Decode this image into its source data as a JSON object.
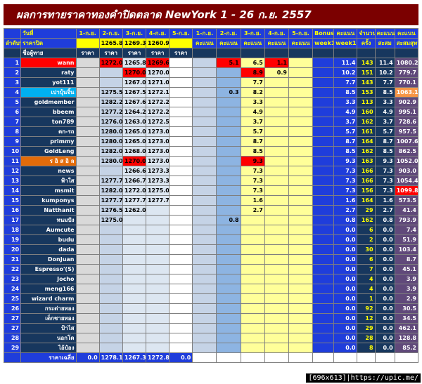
{
  "title": "ผลการทายราคาทองคำปิดตลาด NewYork 1 - 26 ก.ย. 2557",
  "table": {
    "header": [
      [
        null,
        "วันที่",
        "1-ก.ย.",
        "2-ก.ย.",
        "3-ก.ย.",
        "4-ก.ย.",
        "5-ก.ย.",
        "1-ก.ย.",
        "2-ก.ย.",
        "3-ก.ย.",
        "4-ก.ย.",
        "5-ก.ย.",
        "Bonus",
        "คะแนน",
        "จำนวน",
        "คะแนน",
        "คะแนน"
      ],
      [
        "ลำดับที่",
        "ราคาปิด",
        null,
        "1265.8",
        "1269.3",
        "1260.9",
        null,
        "คะแนน",
        "คะแนน",
        "คะแนน",
        "คะแนน",
        "คะแนน",
        "week1",
        "week1",
        "ครั้ง",
        "สะสม",
        "สะสมสุทธิ"
      ],
      [
        null,
        "ชื่อผู้ทาย",
        "ราคา",
        "ราคา",
        "ราคา",
        "ราคา",
        "ราคา",
        null,
        null,
        null,
        null,
        null,
        null,
        null,
        null,
        null,
        null
      ]
    ],
    "rows": [
      [
        "1",
        {
          "text": "wann",
          "bg": "#ff0000"
        },
        null,
        {
          "text": "1272.0",
          "bg": "#ff0000"
        },
        "1265.8",
        {
          "text": "1269.6",
          "bg": "#ff0000"
        },
        null,
        null,
        {
          "text": "5.1",
          "bg": "#ff0000"
        },
        "6.5",
        {
          "text": "1.1",
          "bg": "#ff0000"
        },
        null,
        null,
        "11.4",
        "143",
        "11.4",
        "1080.2"
      ],
      [
        "2",
        "raty",
        null,
        null,
        {
          "text": "1270.0",
          "bg": "#ff0000"
        },
        "1270.0",
        null,
        null,
        null,
        {
          "text": "8.9",
          "bg": "#ff0000"
        },
        "0.9",
        null,
        null,
        "10.2",
        "151",
        "10.2",
        "779.7"
      ],
      [
        "3",
        "yot111",
        null,
        null,
        "1267.0",
        "1271.0",
        null,
        null,
        null,
        "7.7",
        null,
        null,
        null,
        "7.7",
        "143",
        "7.7",
        "770.1"
      ],
      [
        "4",
        {
          "text": "เปาบุ้นจิ้น",
          "bg": "#00b0f0"
        },
        null,
        "1275.5",
        "1267.5",
        "1272.1",
        null,
        null,
        "0.3",
        "8.2",
        null,
        null,
        null,
        "8.5",
        "153",
        "8.5",
        {
          "text": "1063.1",
          "bg": "#f79646"
        }
      ],
      [
        "5",
        "goldmember",
        null,
        "1282.2",
        "1267.6",
        "1272.2",
        null,
        null,
        null,
        "3.3",
        null,
        null,
        null,
        "3.3",
        "113",
        "3.3",
        "902.9"
      ],
      [
        "6",
        "bbeem",
        null,
        "1277.2",
        "1264.2",
        "1272.2",
        null,
        null,
        null,
        "4.9",
        null,
        null,
        null,
        "4.9",
        "160",
        "4.9",
        "995.1"
      ],
      [
        "7",
        "ton789",
        null,
        "1276.0",
        "1263.0",
        "1272.5",
        null,
        null,
        null,
        "3.7",
        null,
        null,
        null,
        "3.7",
        "162",
        "3.7",
        "728.6"
      ],
      [
        "8",
        "ตก-รถ",
        null,
        "1280.0",
        "1265.0",
        "1273.0",
        null,
        null,
        null,
        "5.7",
        null,
        null,
        null,
        "5.7",
        "161",
        "5.7",
        "957.5"
      ],
      [
        "9",
        "primmy",
        null,
        "1280.0",
        "1265.0",
        "1273.0",
        null,
        null,
        null,
        "8.7",
        null,
        null,
        null,
        "8.7",
        "164",
        "8.7",
        "1007.6"
      ],
      [
        "10",
        "GoldLeng",
        null,
        "1282.0",
        "1268.0",
        "1273.0",
        null,
        null,
        null,
        "8.5",
        null,
        null,
        null,
        "8.5",
        "162",
        "8.5",
        "862.5"
      ],
      [
        "11",
        {
          "text": "ร อิ ส อิ ล",
          "bg": "#e26b0a"
        },
        null,
        "1280.0",
        {
          "text": "1270.0",
          "bg": "#ff0000"
        },
        "1273.0",
        null,
        null,
        null,
        {
          "text": "9.3",
          "bg": "#ff0000"
        },
        null,
        null,
        null,
        "9.3",
        "163",
        "9.3",
        "1052.0"
      ],
      [
        "12",
        "news",
        null,
        null,
        "1266.6",
        "1273.3",
        null,
        null,
        null,
        "7.3",
        null,
        null,
        null,
        "7.3",
        "166",
        "7.3",
        "903.0"
      ],
      [
        "13",
        "ฟ้าใส",
        null,
        "1277.7",
        "1266.7",
        "1273.3",
        null,
        null,
        null,
        "7.3",
        null,
        null,
        null,
        "7.3",
        "166",
        "7.3",
        "1054.4"
      ],
      [
        "14",
        "msmit",
        null,
        "1282.0",
        "1272.0",
        "1275.0",
        null,
        null,
        null,
        "7.3",
        null,
        null,
        null,
        "7.3",
        "156",
        "7.3",
        {
          "text": "1099.8",
          "bg": "#ff0000"
        }
      ],
      [
        "15",
        "kumponys",
        null,
        "1277.7",
        "1277.7",
        "1277.7",
        null,
        null,
        null,
        "1.6",
        null,
        null,
        null,
        "1.6",
        "164",
        "1.6",
        "573.5"
      ],
      [
        "16",
        "Natthanit",
        null,
        "1276.5",
        "1262.0",
        null,
        null,
        null,
        null,
        "2.7",
        null,
        null,
        null,
        "2.7",
        "29",
        "2.7",
        "41.4"
      ],
      [
        "17",
        "หนมปัง",
        null,
        "1275.0",
        null,
        null,
        null,
        null,
        "0.8",
        null,
        null,
        null,
        null,
        "0.8",
        "162",
        "0.8",
        "793.9"
      ],
      [
        "18",
        "Aumcute",
        null,
        null,
        null,
        null,
        null,
        null,
        null,
        null,
        null,
        null,
        null,
        "0.0",
        "6",
        "0.0",
        "7.4"
      ],
      [
        "19",
        "budu",
        null,
        null,
        null,
        null,
        null,
        null,
        null,
        null,
        null,
        null,
        null,
        "0.0",
        "2",
        "0.0",
        "51.9"
      ],
      [
        "20",
        "dada",
        null,
        null,
        null,
        null,
        null,
        null,
        null,
        null,
        null,
        null,
        null,
        "0.0",
        "30",
        "0.0",
        "103.4"
      ],
      [
        "21",
        "DonJuan",
        null,
        null,
        null,
        null,
        null,
        null,
        null,
        null,
        null,
        null,
        null,
        "0.0",
        "6",
        "0.0",
        "8.7"
      ],
      [
        "22",
        "Espresso'(S)",
        null,
        null,
        null,
        null,
        null,
        null,
        null,
        null,
        null,
        null,
        null,
        "0.0",
        "7",
        "0.0",
        "45.1"
      ],
      [
        "23",
        "Jocho",
        null,
        null,
        null,
        null,
        null,
        null,
        null,
        null,
        null,
        null,
        null,
        "0.0",
        "4",
        "0.0",
        "3.9"
      ],
      [
        "24",
        "meng166",
        null,
        null,
        null,
        null,
        null,
        null,
        null,
        null,
        null,
        null,
        null,
        "0.0",
        "4",
        "0.0",
        "3.9"
      ],
      [
        "25",
        "wizard charm",
        null,
        null,
        null,
        null,
        null,
        null,
        null,
        null,
        null,
        null,
        null,
        "0.0",
        "1",
        "0.0",
        "2.9"
      ],
      [
        "26",
        "กระต่ายทอง",
        null,
        null,
        null,
        null,
        null,
        null,
        null,
        null,
        null,
        null,
        null,
        "0.0",
        "92",
        "0.0",
        "30.5"
      ],
      [
        "27",
        "เด็กชายทอง",
        null,
        null,
        null,
        null,
        null,
        null,
        null,
        null,
        null,
        null,
        null,
        "0.0",
        "12",
        "0.0",
        "34.5"
      ],
      [
        "27",
        "ป้าไส",
        null,
        null,
        null,
        null,
        null,
        null,
        null,
        null,
        null,
        null,
        null,
        "0.0",
        "29",
        "0.0",
        "462.1"
      ],
      [
        "28",
        "นอกโต",
        null,
        null,
        null,
        null,
        null,
        null,
        null,
        null,
        null,
        null,
        null,
        "0.0",
        "28",
        "0.0",
        "128.8"
      ],
      [
        "29",
        "ไอ้ป๋อง",
        null,
        null,
        null,
        null,
        null,
        null,
        null,
        null,
        null,
        null,
        null,
        "0.0",
        "8",
        "0.0",
        "85.2"
      ]
    ],
    "footer": [
      null,
      "ราคาเฉลี่ย",
      "0.0",
      "1278.1",
      "1267.3",
      "1272.8",
      "0.0"
    ]
  },
  "watermark": "[696x613]|https://upic.me/"
}
